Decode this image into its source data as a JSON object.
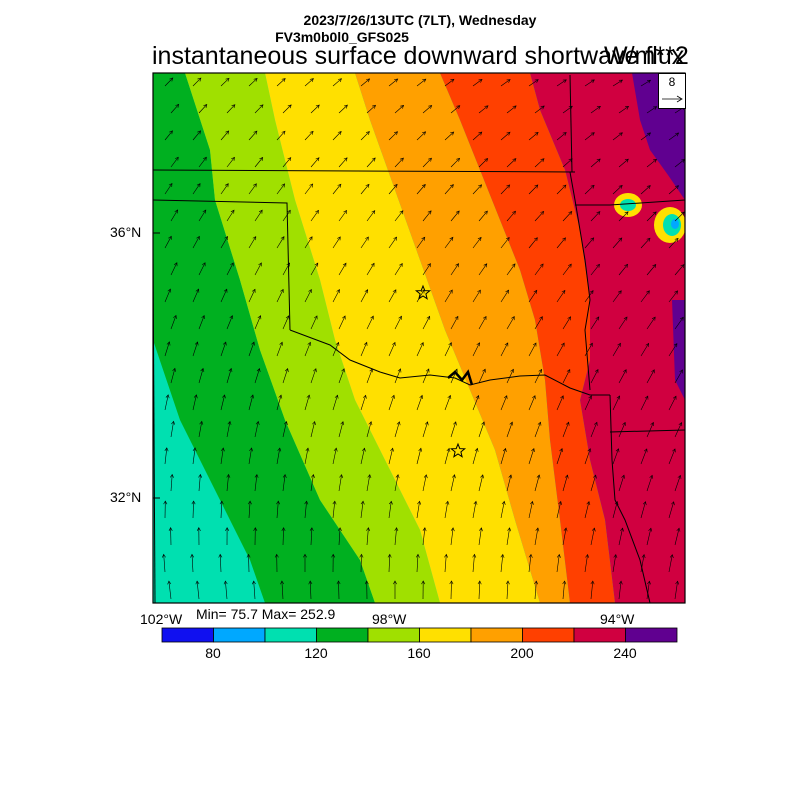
{
  "header": {
    "datetime": "2023/7/26/13UTC (7LT), Wednesday",
    "model": "FV3m0b0l0_GFS025",
    "title": "instantaneous surface downward shortwave flux",
    "units": "W/m**2"
  },
  "axes": {
    "lat_labels": [
      "36°N",
      "32°N"
    ],
    "lon_labels": [
      "102°W",
      "98°W",
      "94°W"
    ]
  },
  "stats": {
    "text": "Min= 75.7 Max= 252.9"
  },
  "vector_reference": {
    "value": "8"
  },
  "colorbar": {
    "colors": [
      "#1010f0",
      "#00a8ff",
      "#00e0b0",
      "#00b020",
      "#a0e000",
      "#ffe000",
      "#ffa000",
      "#ff4000",
      "#d00040",
      "#600090"
    ],
    "labels": [
      "80",
      "120",
      "160",
      "200",
      "240"
    ]
  },
  "map_colors": {
    "c120": "#00b020",
    "c140": "#a0e000",
    "c160": "#ffe000",
    "c180": "#ffa000",
    "c200": "#ff4000",
    "c220": "#d00040",
    "c240": "#600090",
    "c100": "#00e0b0",
    "c80": "#00a8ff"
  }
}
